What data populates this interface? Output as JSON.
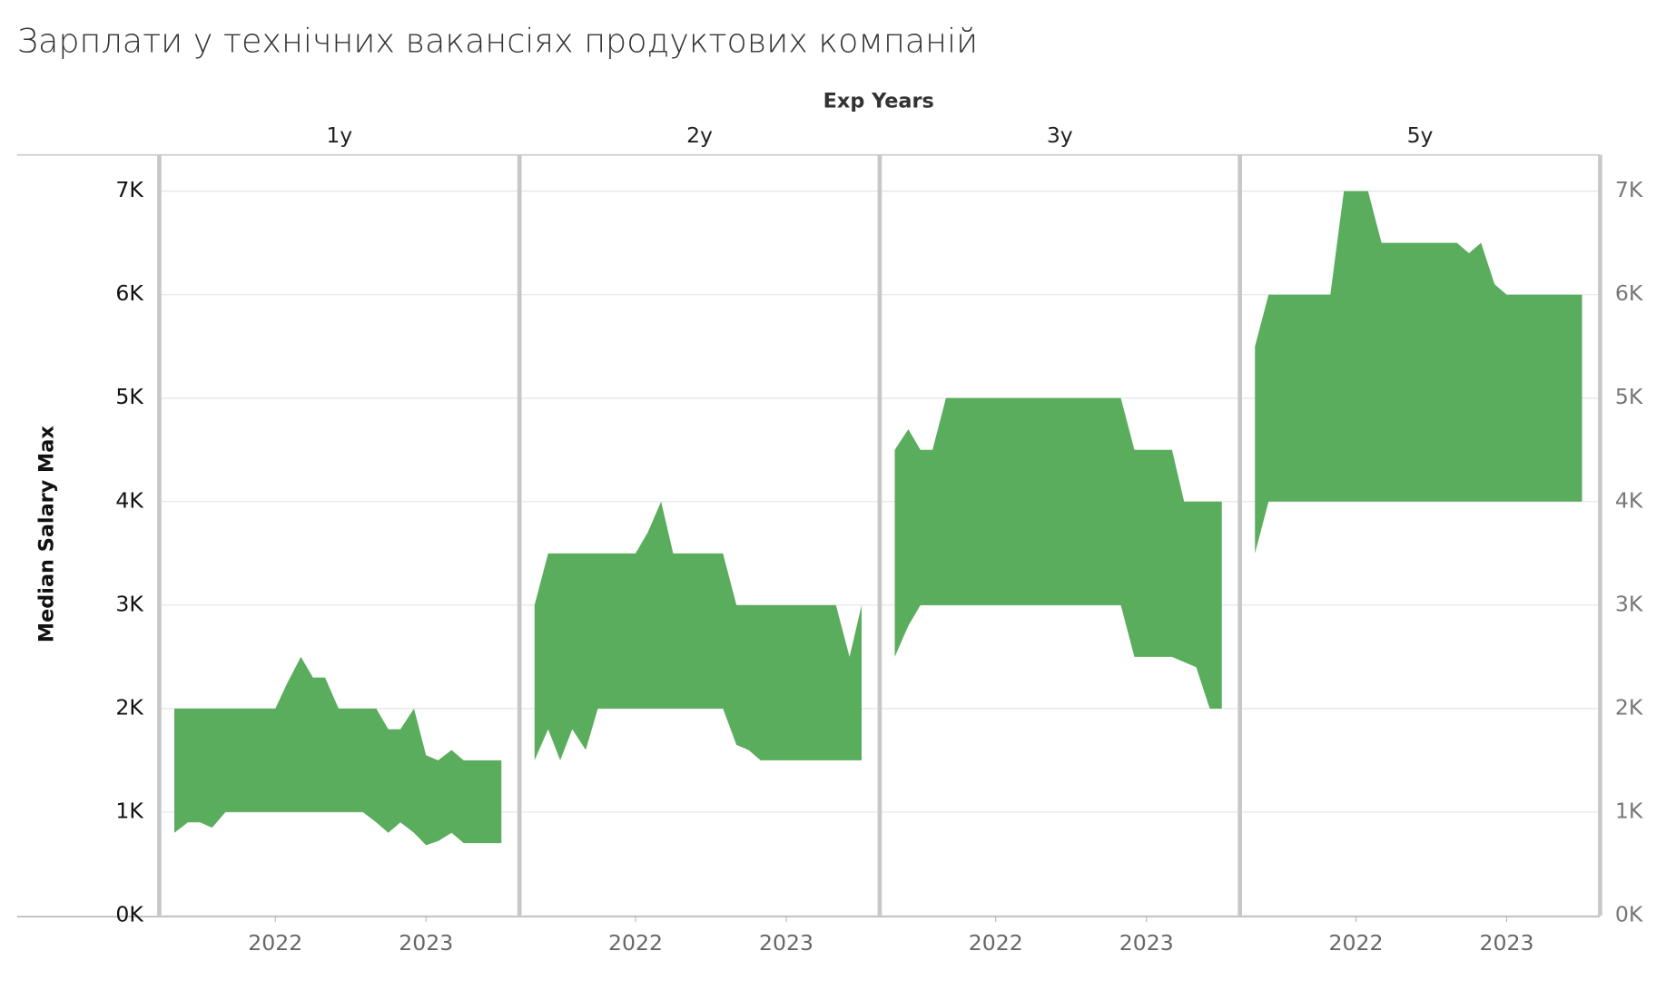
{
  "chart_data": {
    "type": "area_range",
    "title": "Зарплати у технічних вакансіях продуктових компаній",
    "facet_label": "Exp Years",
    "y_label": "Median Salary Max",
    "x": [
      2021.33,
      2021.42,
      2021.5,
      2021.58,
      2021.67,
      2021.75,
      2021.83,
      2021.92,
      2022,
      2022.08,
      2022.17,
      2022.25,
      2022.33,
      2022.42,
      2022.5,
      2022.58,
      2022.67,
      2022.75,
      2022.83,
      2022.92,
      2023,
      2023.08,
      2023.17,
      2023.25,
      2023.33,
      2023.42,
      2023.5
    ],
    "xlim": [
      2021.23,
      2023.62
    ],
    "xticks": [
      2022,
      2023
    ],
    "ylim": [
      0,
      7350
    ],
    "yticks": [
      {
        "value": 0,
        "label": "0K"
      },
      {
        "value": 1000,
        "label": "1K"
      },
      {
        "value": 2000,
        "label": "2K"
      },
      {
        "value": 3000,
        "label": "3K"
      },
      {
        "value": 4000,
        "label": "4K"
      },
      {
        "value": 5000,
        "label": "5K"
      },
      {
        "value": 6000,
        "label": "6K"
      },
      {
        "value": 7000,
        "label": "7K"
      }
    ],
    "grid": true,
    "series": [
      {
        "name": "1y",
        "color": "#59ad5c",
        "high": [
          2000,
          2000,
          2000,
          2000,
          2000,
          2000,
          2000,
          2000,
          2000,
          2250,
          2500,
          2300,
          2300,
          2000,
          2000,
          2000,
          2000,
          1800,
          1800,
          2000,
          1550,
          1500,
          1600,
          1500,
          1500,
          1500,
          1500
        ],
        "low": [
          800,
          900,
          900,
          850,
          1000,
          1000,
          1000,
          1000,
          1000,
          1000,
          1000,
          1000,
          1000,
          1000,
          1000,
          1000,
          900,
          800,
          900,
          800,
          680,
          720,
          800,
          700,
          700,
          700,
          700
        ]
      },
      {
        "name": "2y",
        "color": "#59ad5c",
        "high": [
          3000,
          3500,
          3500,
          3500,
          3500,
          3500,
          3500,
          3500,
          3500,
          3700,
          4000,
          3500,
          3500,
          3500,
          3500,
          3500,
          3000,
          3000,
          3000,
          3000,
          3000,
          3000,
          3000,
          3000,
          3000,
          2500,
          3000
        ],
        "low": [
          1500,
          1800,
          1500,
          1800,
          1600,
          2000,
          2000,
          2000,
          2000,
          2000,
          2000,
          2000,
          2000,
          2000,
          2000,
          2000,
          1650,
          1600,
          1500,
          1500,
          1500,
          1500,
          1500,
          1500,
          1500,
          1500,
          1500
        ]
      },
      {
        "name": "3y",
        "color": "#59ad5c",
        "high": [
          4500,
          4700,
          4500,
          4500,
          5000,
          5000,
          5000,
          5000,
          5000,
          5000,
          5000,
          5000,
          5000,
          5000,
          5000,
          5000,
          5000,
          5000,
          5000,
          4500,
          4500,
          4500,
          4500,
          4000,
          4000,
          4000,
          4000
        ],
        "low": [
          2500,
          2800,
          3000,
          3000,
          3000,
          3000,
          3000,
          3000,
          3000,
          3000,
          3000,
          3000,
          3000,
          3000,
          3000,
          3000,
          3000,
          3000,
          3000,
          2500,
          2500,
          2500,
          2500,
          2450,
          2400,
          2000,
          2000
        ]
      },
      {
        "name": "5y",
        "color": "#59ad5c",
        "high": [
          5500,
          6000,
          6000,
          6000,
          6000,
          6000,
          6000,
          7000,
          7000,
          7000,
          6500,
          6500,
          6500,
          6500,
          6500,
          6500,
          6500,
          6400,
          6500,
          6100,
          6000,
          6000,
          6000,
          6000,
          6000,
          6000,
          6000
        ],
        "low": [
          3500,
          4000,
          4000,
          4000,
          4000,
          4000,
          4000,
          4000,
          4000,
          4000,
          4000,
          4000,
          4000,
          4000,
          4000,
          4000,
          4000,
          4000,
          4000,
          4000,
          4000,
          4000,
          4000,
          4000,
          4000,
          4000,
          4000
        ]
      }
    ]
  }
}
